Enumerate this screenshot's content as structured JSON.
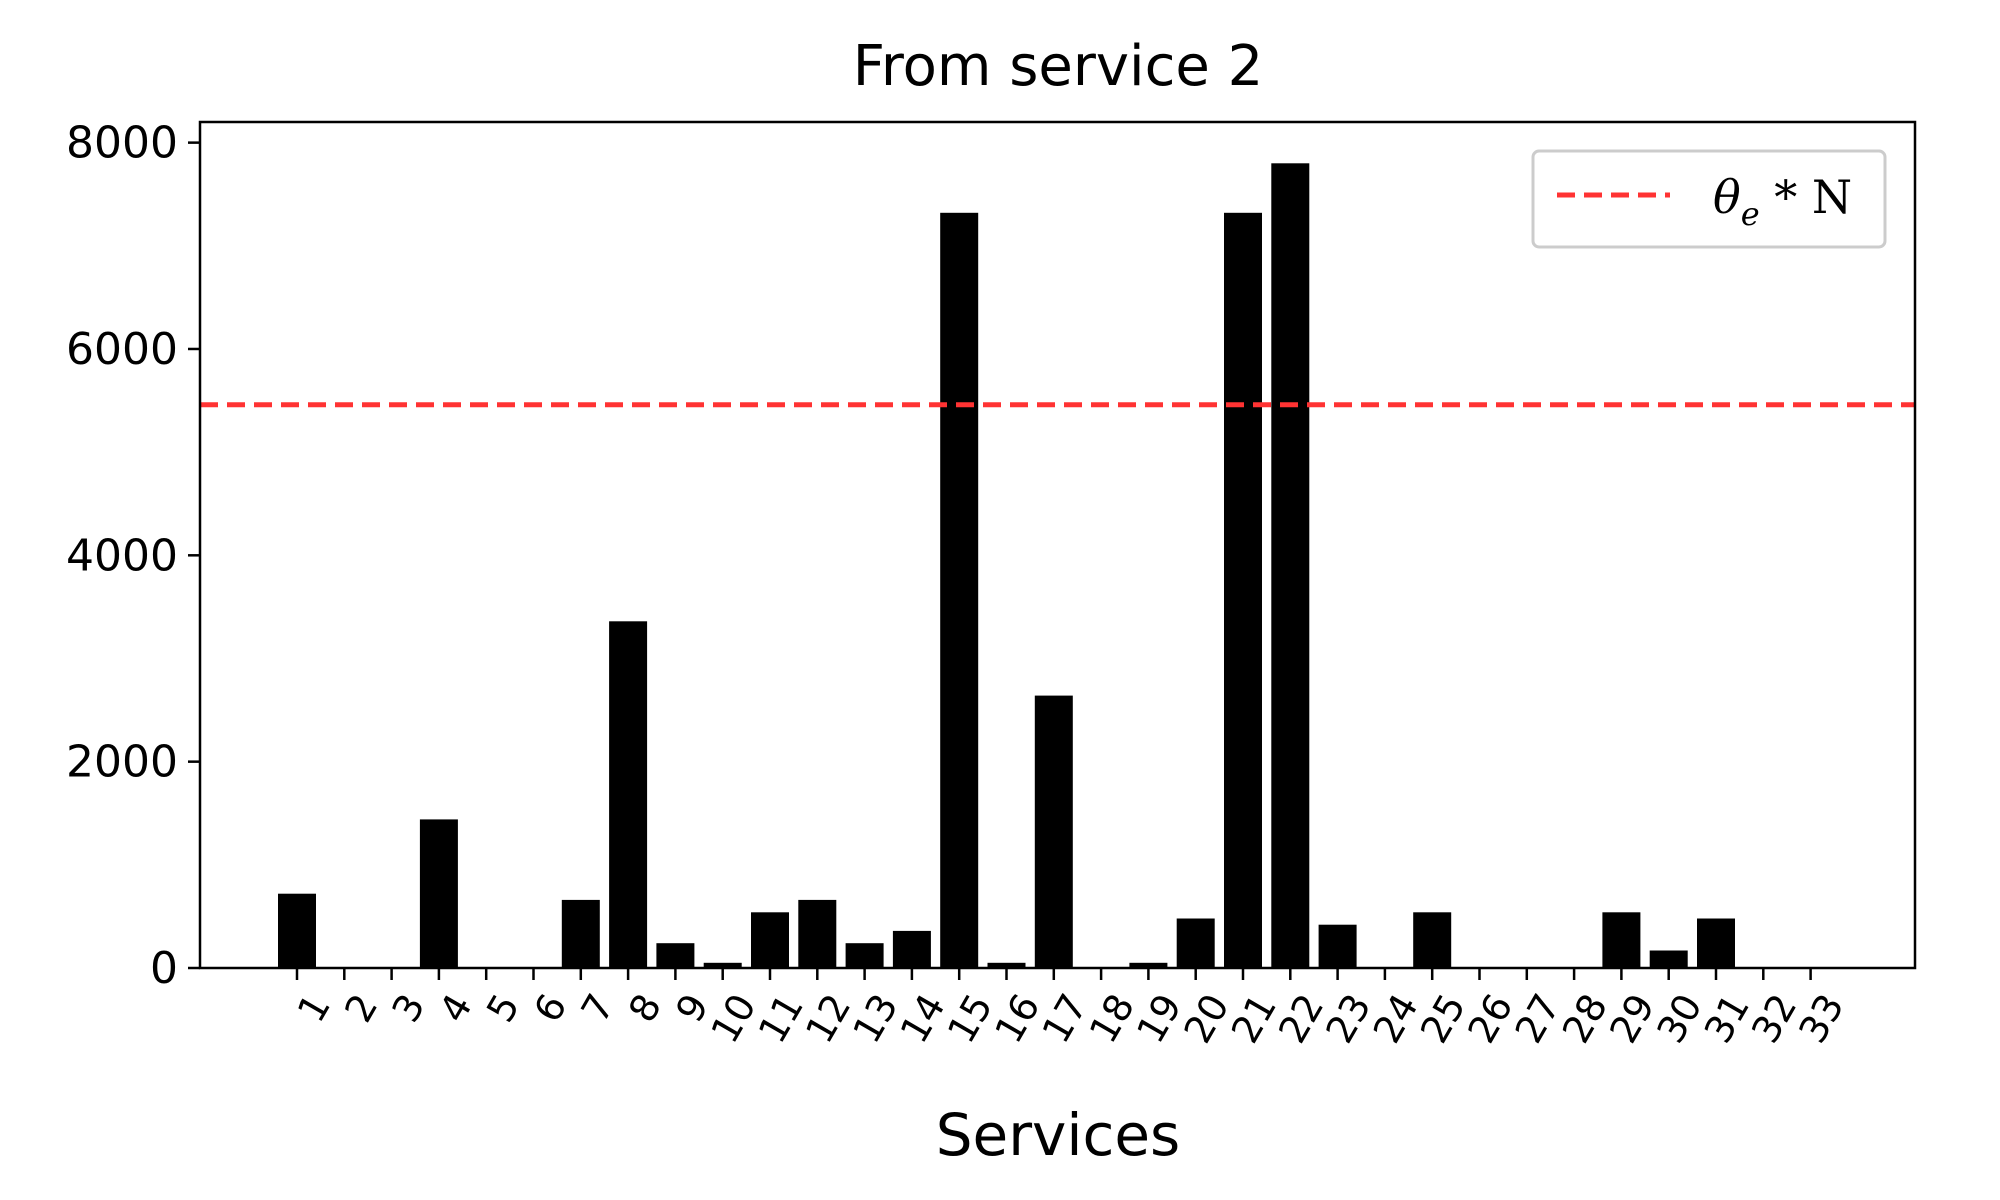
{
  "chart_data": {
    "type": "bar",
    "title": "From service 2",
    "xlabel": "Services",
    "ylabel": "",
    "ylim": [
      0,
      8200
    ],
    "yticks": [
      0,
      2000,
      4000,
      6000,
      8000
    ],
    "ytick_labels": [
      "0",
      "2000",
      "4000",
      "6000",
      "8000"
    ],
    "categories": [
      "1",
      "2",
      "3",
      "4",
      "5",
      "6",
      "7",
      "8",
      "9",
      "10",
      "11",
      "12",
      "13",
      "14",
      "15",
      "16",
      "17",
      "18",
      "19",
      "20",
      "21",
      "22",
      "23",
      "24",
      "25",
      "26",
      "27",
      "28",
      "29",
      "30",
      "31",
      "32",
      "33"
    ],
    "values": [
      720,
      0,
      0,
      1440,
      0,
      0,
      660,
      3360,
      240,
      50,
      540,
      660,
      240,
      360,
      7320,
      50,
      2640,
      0,
      50,
      480,
      7320,
      7800,
      420,
      0,
      540,
      0,
      0,
      0,
      540,
      170,
      480,
      0,
      0
    ],
    "bar_color": "#000000",
    "threshold": {
      "value": 5460,
      "label": "θe * N",
      "label_main": "θ",
      "label_sub": "e",
      "label_rest": " * N",
      "color": "#ff3333",
      "style": "dashed"
    },
    "legend_position": "top-right",
    "xtick_rotation": 60,
    "grid": false
  }
}
